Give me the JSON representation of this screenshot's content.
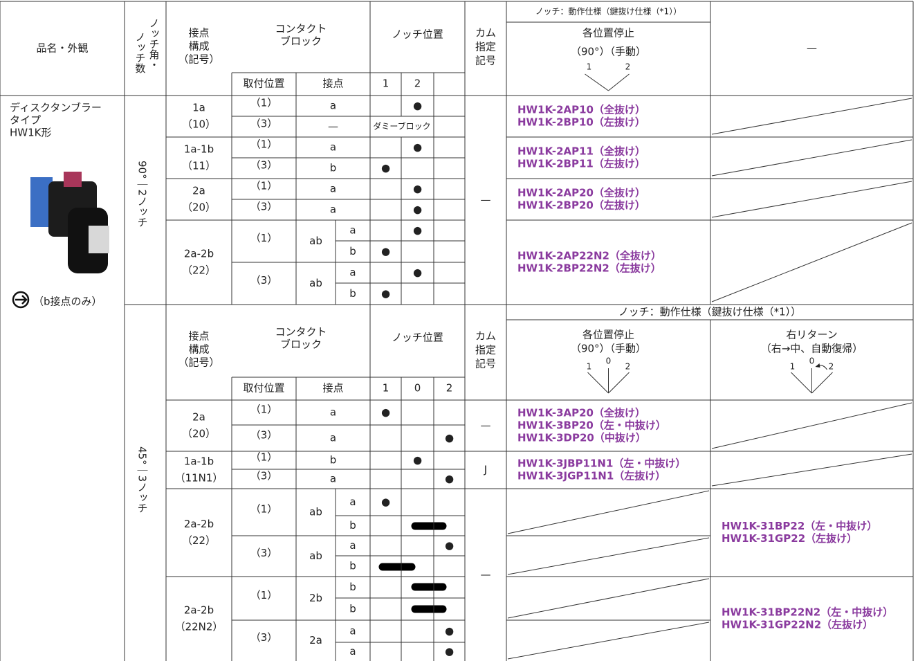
{
  "header": {
    "product": "品名・外観",
    "notch_angle": [
      "ノッチ角・",
      "ノッチ数"
    ],
    "contact_config": [
      "接点",
      "構成",
      "（記号）"
    ],
    "contact_block": [
      "コンタクト",
      "ブロック"
    ],
    "notch_position": "ノッチ位置",
    "cam": [
      "カム",
      "指定",
      "記号"
    ],
    "mount_position": "取付位置",
    "contact": "接点",
    "notch_spec": "ノッチ：動作仕様（鍵抜け仕様（*1））"
  },
  "product": {
    "name": [
      "ディスクタンブラー",
      "タイプ",
      "HW1K形"
    ],
    "note": "（b接点のみ）"
  },
  "sections": [
    {
      "notch": "90°｜2ノッチ",
      "positions": [
        "1",
        "2"
      ],
      "modes": [
        {
          "title": "各位置停止",
          "detail": "（90°）（手動）"
        }
      ],
      "other_mode": "—",
      "cam": "—",
      "groups": [
        {
          "config": "1a",
          "code": "（10）",
          "rows": [
            {
              "mount": "（1）",
              "contact": "a",
              "marks": [
                null,
                "●"
              ]
            },
            {
              "mount": "（3）",
              "contact": "—",
              "dummy": "ダミーブロック"
            }
          ],
          "models": [
            "HW1K-2AP10（全抜け）",
            "HW1K-2BP10（左抜け）"
          ]
        },
        {
          "config": "1a-1b",
          "code": "（11）",
          "rows": [
            {
              "mount": "（1）",
              "contact": "a",
              "marks": [
                null,
                "●"
              ]
            },
            {
              "mount": "（3）",
              "contact": "b",
              "marks": [
                "●",
                null
              ]
            }
          ],
          "models": [
            "HW1K-2AP11（全抜け）",
            "HW1K-2BP11（左抜け）"
          ]
        },
        {
          "config": "2a",
          "code": "（20）",
          "rows": [
            {
              "mount": "（1）",
              "contact": "a",
              "marks": [
                null,
                "●"
              ]
            },
            {
              "mount": "（3）",
              "contact": "a",
              "marks": [
                null,
                "●"
              ]
            }
          ],
          "models": [
            "HW1K-2AP20（全抜け）",
            "HW1K-2BP20（左抜け）"
          ]
        },
        {
          "config": "2a-2b",
          "code": "（22）",
          "rows": [
            {
              "mount": "（1）",
              "contact": "ab",
              "subs": [
                {
                  "contact": "a",
                  "marks": [
                    null,
                    "●"
                  ]
                },
                {
                  "contact": "b",
                  "marks": [
                    "●",
                    null
                  ]
                }
              ]
            },
            {
              "mount": "（3）",
              "contact": "ab",
              "subs": [
                {
                  "contact": "a",
                  "marks": [
                    null,
                    "●"
                  ]
                },
                {
                  "contact": "b",
                  "marks": [
                    "●",
                    null
                  ]
                }
              ]
            }
          ],
          "models": [
            "HW1K-2AP22N2（全抜け）",
            "HW1K-2BP22N2（左抜け）"
          ]
        }
      ]
    },
    {
      "notch": "45°｜3ノッチ",
      "positions": [
        "1",
        "0",
        "2"
      ],
      "modes": [
        {
          "title": "各位置停止",
          "detail": "（90°）（手動）"
        },
        {
          "title": "右リターン",
          "detail": "（右→中、自動復帰）"
        }
      ],
      "cams": [
        "—",
        "J",
        "—"
      ],
      "groups": [
        {
          "config": "2a",
          "code": "（20）",
          "rows": [
            {
              "mount": "（1）",
              "contact": "a",
              "marks": [
                "●",
                null,
                null
              ]
            },
            {
              "mount": "（3）",
              "contact": "a",
              "marks": [
                null,
                null,
                "●"
              ]
            }
          ],
          "manual_models": [
            "HW1K-3AP20（全抜け）",
            "HW1K-3BP20（左・中抜け）",
            "HW1K-3DP20（中抜け）"
          ]
        },
        {
          "config": "1a-1b",
          "code": "（11N1）",
          "rows": [
            {
              "mount": "（1）",
              "contact": "b",
              "marks": [
                null,
                "●",
                null
              ]
            },
            {
              "mount": "（3）",
              "contact": "a",
              "marks": [
                null,
                null,
                "●"
              ]
            }
          ],
          "manual_models": [
            "HW1K-3JBP11N1（左・中抜け）",
            "HW1K-3JGP11N1（左抜け）"
          ]
        },
        {
          "config": "2a-2b",
          "code": "（22）",
          "rows": [
            {
              "mount": "（1）",
              "contact": "ab",
              "subs": [
                {
                  "contact": "a",
                  "marks": [
                    "●",
                    null,
                    null
                  ]
                },
                {
                  "contact": "b",
                  "marks": [
                    null,
                    null,
                    null
                  ]
                }
              ]
            },
            {
              "mount": "（3）",
              "contact": "ab",
              "subs": [
                {
                  "contact": "a",
                  "marks": [
                    null,
                    null,
                    "●"
                  ]
                },
                {
                  "contact": "b",
                  "marks": [
                    null,
                    null,
                    null
                  ]
                }
              ]
            }
          ],
          "return_models": [
            "HW1K-31BP22（左・中抜け）",
            "HW1K-31GP22（左抜け）"
          ]
        },
        {
          "config": "2a-2b",
          "code": "（22N2）",
          "rows": [
            {
              "mount": "（1）",
              "contact": "2b",
              "subs": [
                {
                  "contact": "b",
                  "marks": [
                    null,
                    null,
                    null
                  ]
                },
                {
                  "contact": "b",
                  "marks": [
                    null,
                    null,
                    null
                  ]
                }
              ]
            },
            {
              "mount": "（3）",
              "contact": "2a",
              "subs": [
                {
                  "contact": "a",
                  "marks": [
                    null,
                    null,
                    "●"
                  ]
                },
                {
                  "contact": "a",
                  "marks": [
                    null,
                    null,
                    "●"
                  ]
                }
              ]
            }
          ],
          "return_models": [
            "HW1K-31BP22N2（左・中抜け）",
            "HW1K-31GP22N2（左抜け）"
          ]
        }
      ]
    }
  ]
}
